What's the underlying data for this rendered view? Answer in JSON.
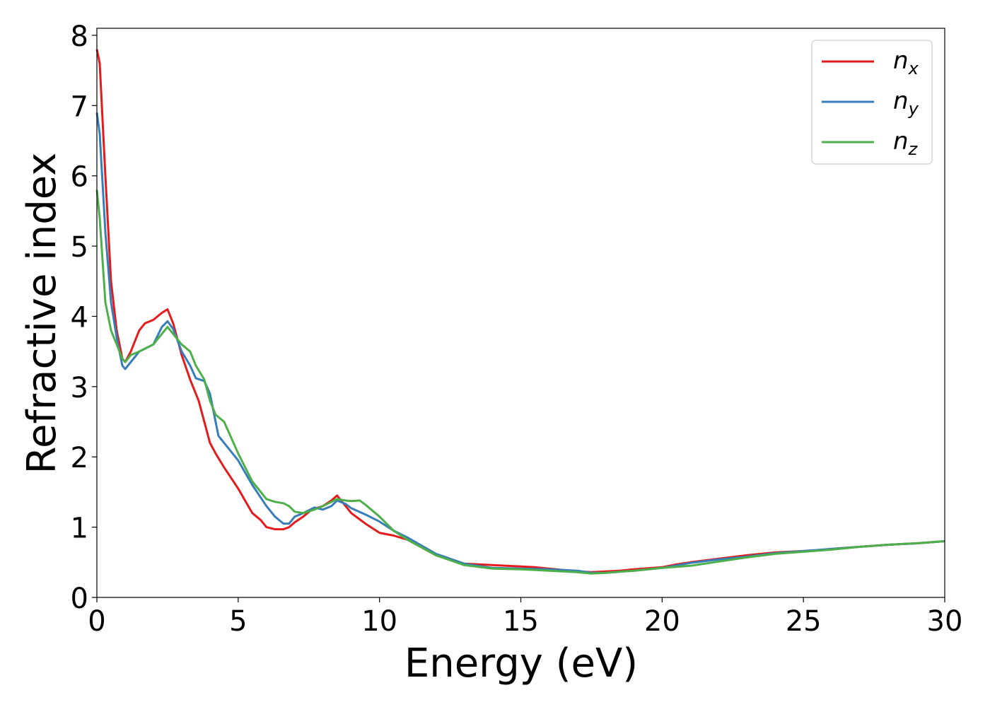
{
  "chart_data": {
    "type": "line",
    "title": "",
    "xlabel": "Energy (eV)",
    "ylabel": "Refractive index",
    "xlim": [
      0,
      30
    ],
    "ylim": [
      0,
      8.1
    ],
    "grid": false,
    "legend_position": "top-right",
    "xticks": [
      "0",
      "5",
      "10",
      "15",
      "20",
      "25",
      "30"
    ],
    "yticks": [
      "0",
      "1",
      "2",
      "3",
      "4",
      "5",
      "6",
      "7",
      "8"
    ],
    "series": [
      {
        "name": "n",
        "subscript": "x",
        "color": "#e41a1c",
        "x": [
          0,
          0.1,
          0.3,
          0.5,
          0.7,
          0.9,
          1.0,
          1.2,
          1.5,
          1.7,
          2.0,
          2.3,
          2.5,
          2.7,
          3.0,
          3.3,
          3.6,
          3.8,
          4.0,
          4.2,
          4.5,
          5.0,
          5.5,
          5.8,
          6.0,
          6.3,
          6.6,
          6.8,
          7.0,
          7.3,
          7.6,
          8.0,
          8.3,
          8.5,
          8.7,
          9.0,
          9.5,
          10.0,
          10.5,
          11.0,
          12.0,
          13.0,
          14.0,
          15.0,
          15.5,
          16.0,
          17.0,
          17.5,
          18.0,
          18.5,
          19.0,
          20.0,
          20.5,
          21.0,
          22.0,
          23.0,
          24.0,
          25.0,
          25.5,
          26.0,
          27.0,
          28.0,
          29.0,
          30.0
        ],
        "y": [
          7.8,
          7.6,
          6.0,
          4.5,
          3.8,
          3.4,
          3.35,
          3.5,
          3.8,
          3.9,
          3.95,
          4.05,
          4.1,
          3.9,
          3.45,
          3.1,
          2.8,
          2.5,
          2.2,
          2.05,
          1.85,
          1.55,
          1.2,
          1.1,
          1.0,
          0.97,
          0.97,
          1.0,
          1.07,
          1.15,
          1.25,
          1.3,
          1.38,
          1.45,
          1.35,
          1.2,
          1.05,
          0.92,
          0.88,
          0.82,
          0.6,
          0.48,
          0.46,
          0.44,
          0.43,
          0.41,
          0.37,
          0.36,
          0.37,
          0.38,
          0.4,
          0.43,
          0.47,
          0.5,
          0.55,
          0.6,
          0.64,
          0.66,
          0.67,
          0.69,
          0.72,
          0.75,
          0.77,
          0.8
        ]
      },
      {
        "name": "n",
        "subscript": "y",
        "color": "#377eb8",
        "x": [
          0,
          0.1,
          0.3,
          0.5,
          0.7,
          0.9,
          1.0,
          1.2,
          1.5,
          2.0,
          2.3,
          2.5,
          2.7,
          3.0,
          3.3,
          3.5,
          3.8,
          4.0,
          4.3,
          4.5,
          5.0,
          5.5,
          6.0,
          6.3,
          6.6,
          6.8,
          7.0,
          7.3,
          7.7,
          8.0,
          8.3,
          8.5,
          8.8,
          9.0,
          9.5,
          10.0,
          10.5,
          11.0,
          12.0,
          13.0,
          14.0,
          15.0,
          16.0,
          17.0,
          17.5,
          18.0,
          19.0,
          20.0,
          21.0,
          22.0,
          23.0,
          24.0,
          25.0,
          26.0,
          27.0,
          28.0,
          29.0,
          30.0
        ],
        "y": [
          6.9,
          6.6,
          5.2,
          4.2,
          3.7,
          3.3,
          3.25,
          3.35,
          3.5,
          3.6,
          3.85,
          3.93,
          3.82,
          3.5,
          3.3,
          3.12,
          3.08,
          2.9,
          2.3,
          2.2,
          1.95,
          1.6,
          1.3,
          1.15,
          1.05,
          1.05,
          1.15,
          1.2,
          1.28,
          1.25,
          1.3,
          1.38,
          1.33,
          1.27,
          1.18,
          1.08,
          0.95,
          0.85,
          0.62,
          0.48,
          0.42,
          0.41,
          0.4,
          0.38,
          0.35,
          0.35,
          0.38,
          0.42,
          0.49,
          0.54,
          0.58,
          0.63,
          0.66,
          0.69,
          0.72,
          0.75,
          0.77,
          0.8
        ]
      },
      {
        "name": "n",
        "subscript": "z",
        "color": "#4daf4a",
        "x": [
          0,
          0.1,
          0.3,
          0.5,
          0.7,
          0.9,
          1.0,
          1.2,
          1.5,
          2.0,
          2.3,
          2.5,
          2.7,
          3.0,
          3.3,
          3.5,
          3.8,
          4.0,
          4.2,
          4.5,
          5.0,
          5.5,
          6.0,
          6.3,
          6.6,
          6.8,
          7.0,
          7.3,
          7.7,
          8.0,
          8.3,
          8.5,
          8.8,
          9.0,
          9.3,
          9.5,
          10.0,
          10.5,
          11.0,
          12.0,
          13.0,
          14.0,
          15.0,
          16.0,
          17.0,
          17.5,
          18.0,
          19.0,
          20.0,
          21.0,
          22.0,
          23.0,
          24.0,
          25.0,
          26.0,
          27.0,
          28.0,
          29.0,
          30.0
        ],
        "y": [
          5.8,
          5.4,
          4.2,
          3.8,
          3.6,
          3.4,
          3.35,
          3.45,
          3.5,
          3.6,
          3.75,
          3.85,
          3.75,
          3.6,
          3.5,
          3.3,
          3.1,
          2.8,
          2.6,
          2.5,
          2.05,
          1.65,
          1.4,
          1.36,
          1.34,
          1.3,
          1.22,
          1.2,
          1.25,
          1.3,
          1.36,
          1.4,
          1.38,
          1.37,
          1.38,
          1.32,
          1.15,
          0.95,
          0.82,
          0.6,
          0.46,
          0.41,
          0.4,
          0.38,
          0.36,
          0.34,
          0.35,
          0.38,
          0.42,
          0.45,
          0.51,
          0.57,
          0.62,
          0.65,
          0.68,
          0.72,
          0.75,
          0.77,
          0.8
        ]
      }
    ]
  }
}
